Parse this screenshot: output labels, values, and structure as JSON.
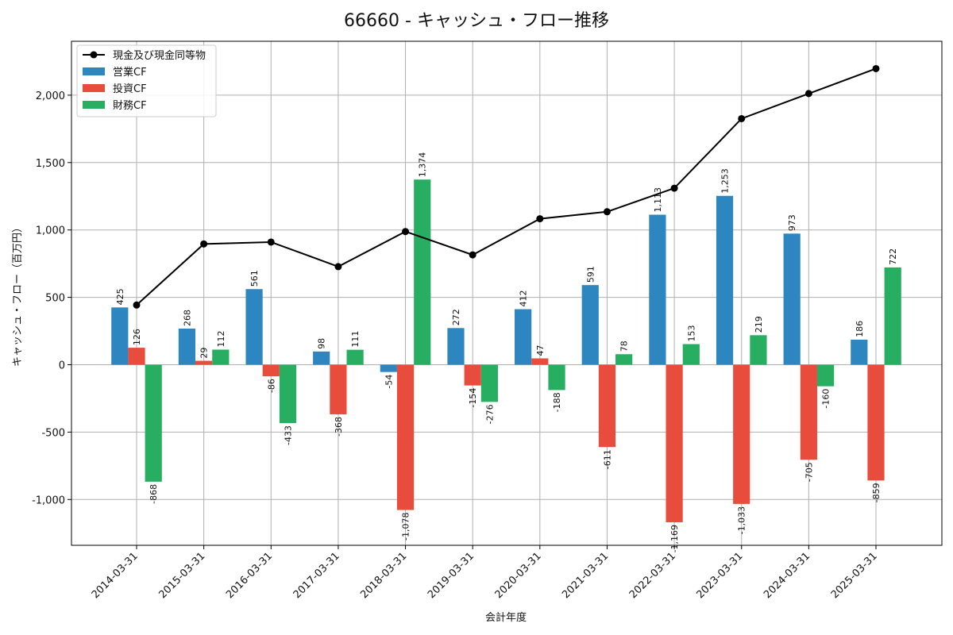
{
  "chart_data": {
    "type": "bar",
    "title": "66660 - キャッシュ・フロー推移",
    "xlabel": "会計年度",
    "ylabel": "キャッシュ・フロー（百万円）",
    "categories": [
      "2014-03-31",
      "2015-03-31",
      "2016-03-31",
      "2017-03-31",
      "2018-03-31",
      "2019-03-31",
      "2020-03-31",
      "2021-03-31",
      "2022-03-31",
      "2023-03-31",
      "2024-03-31",
      "2025-03-31"
    ],
    "ylim": [
      -1340,
      2400
    ],
    "yticks": [
      -1000,
      -500,
      0,
      500,
      1000,
      1500,
      2000
    ],
    "ytick_labels": [
      "-1,000",
      "-500",
      "0",
      "500",
      "1,000",
      "1,500",
      "2,000"
    ],
    "grid": true,
    "legend_position": "top-left",
    "series": [
      {
        "name": "営業CF",
        "type": "bar",
        "color": "#2e86c1",
        "values": [
          425,
          268,
          561,
          98,
          -54,
          272,
          412,
          591,
          1113,
          1253,
          973,
          186
        ],
        "labels": [
          "425",
          "268",
          "561",
          "98",
          "-54",
          "272",
          "412",
          "591",
          "1,113",
          "1,253",
          "973",
          "186"
        ]
      },
      {
        "name": "投資CF",
        "type": "bar",
        "color": "#e74c3c",
        "values": [
          126,
          29,
          -86,
          -368,
          -1078,
          -154,
          47,
          -611,
          -1169,
          -1033,
          -705,
          -859
        ],
        "labels": [
          "126",
          "29",
          "-86",
          "-368",
          "-1,078",
          "-154",
          "47",
          "-611",
          "-1,169",
          "-1,033",
          "-705",
          "-859"
        ]
      },
      {
        "name": "財務CF",
        "type": "bar",
        "color": "#27ae60",
        "values": [
          -868,
          112,
          -433,
          111,
          1374,
          -276,
          -188,
          78,
          153,
          219,
          -160,
          722
        ],
        "labels": [
          "-868",
          "112",
          "-433",
          "111",
          "1,374",
          "-276",
          "-188",
          "78",
          "153",
          "219",
          "-160",
          "722"
        ]
      },
      {
        "name": "現金及び現金同等物",
        "type": "line",
        "color": "#000000",
        "values": [
          443,
          896,
          910,
          728,
          988,
          815,
          1083,
          1135,
          1310,
          1826,
          2012,
          2197
        ]
      }
    ],
    "legend_order": [
      "現金及び現金同等物",
      "営業CF",
      "投資CF",
      "財務CF"
    ]
  }
}
